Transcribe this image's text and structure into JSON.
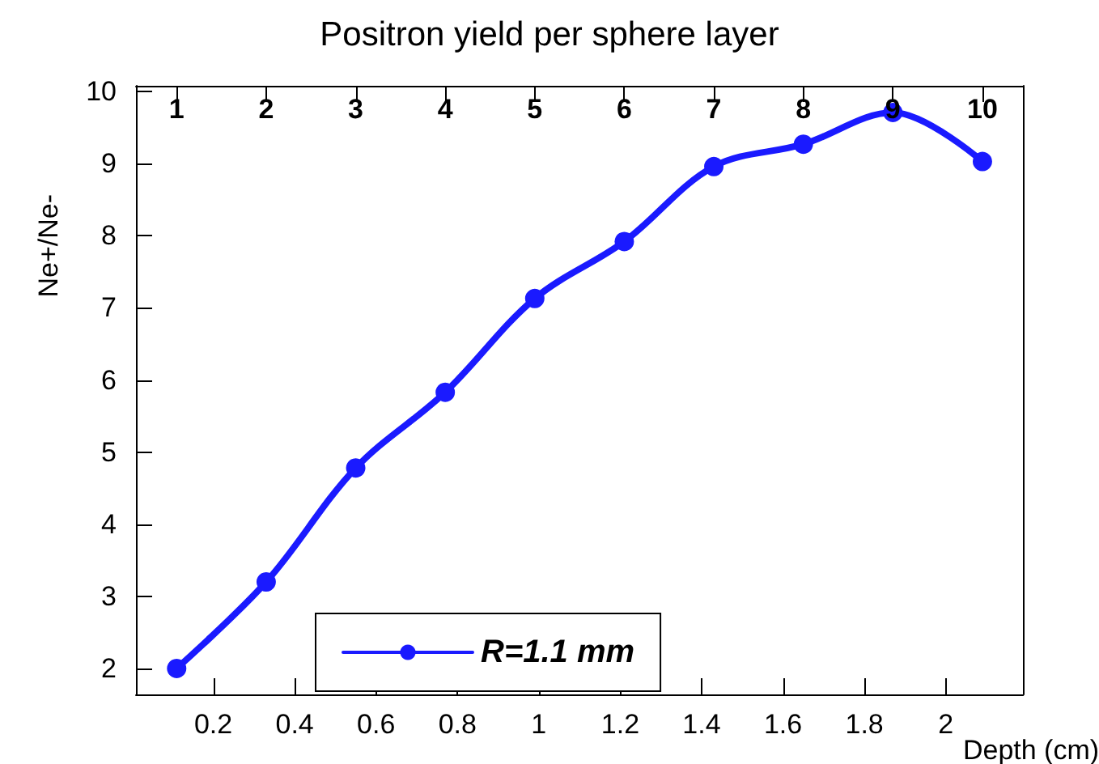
{
  "chart_data": {
    "type": "line",
    "title": "Positron yield per sphere layer",
    "xlabel": "Depth (cm)",
    "ylabel": "Ne+/Ne-",
    "x": [
      0.11,
      0.33,
      0.55,
      0.77,
      0.99,
      1.21,
      1.43,
      1.65,
      1.87,
      2.09
    ],
    "series": [
      {
        "name": "R=1.1 mm",
        "color": "#1a1aff",
        "values": [
          2.0,
          3.2,
          4.78,
          5.83,
          7.13,
          7.92,
          8.96,
          9.27,
          9.71,
          9.03
        ]
      }
    ],
    "xlim": [
      0.01,
      2.19
    ],
    "xticks": [
      0.2,
      0.4,
      0.6,
      0.8,
      1,
      1.2,
      1.4,
      1.6,
      1.8,
      2
    ],
    "ylim": [
      1.64,
      10.08
    ],
    "yticks": [
      2,
      3,
      4,
      5,
      6,
      7,
      8,
      9,
      10
    ],
    "x2lim": [
      0.545,
      10.455
    ],
    "x2ticks": [
      1,
      2,
      3,
      4,
      5,
      6,
      7,
      8,
      9,
      10
    ],
    "grid": false,
    "legend": "bottom",
    "marker": "circle",
    "line_style": "solid"
  }
}
